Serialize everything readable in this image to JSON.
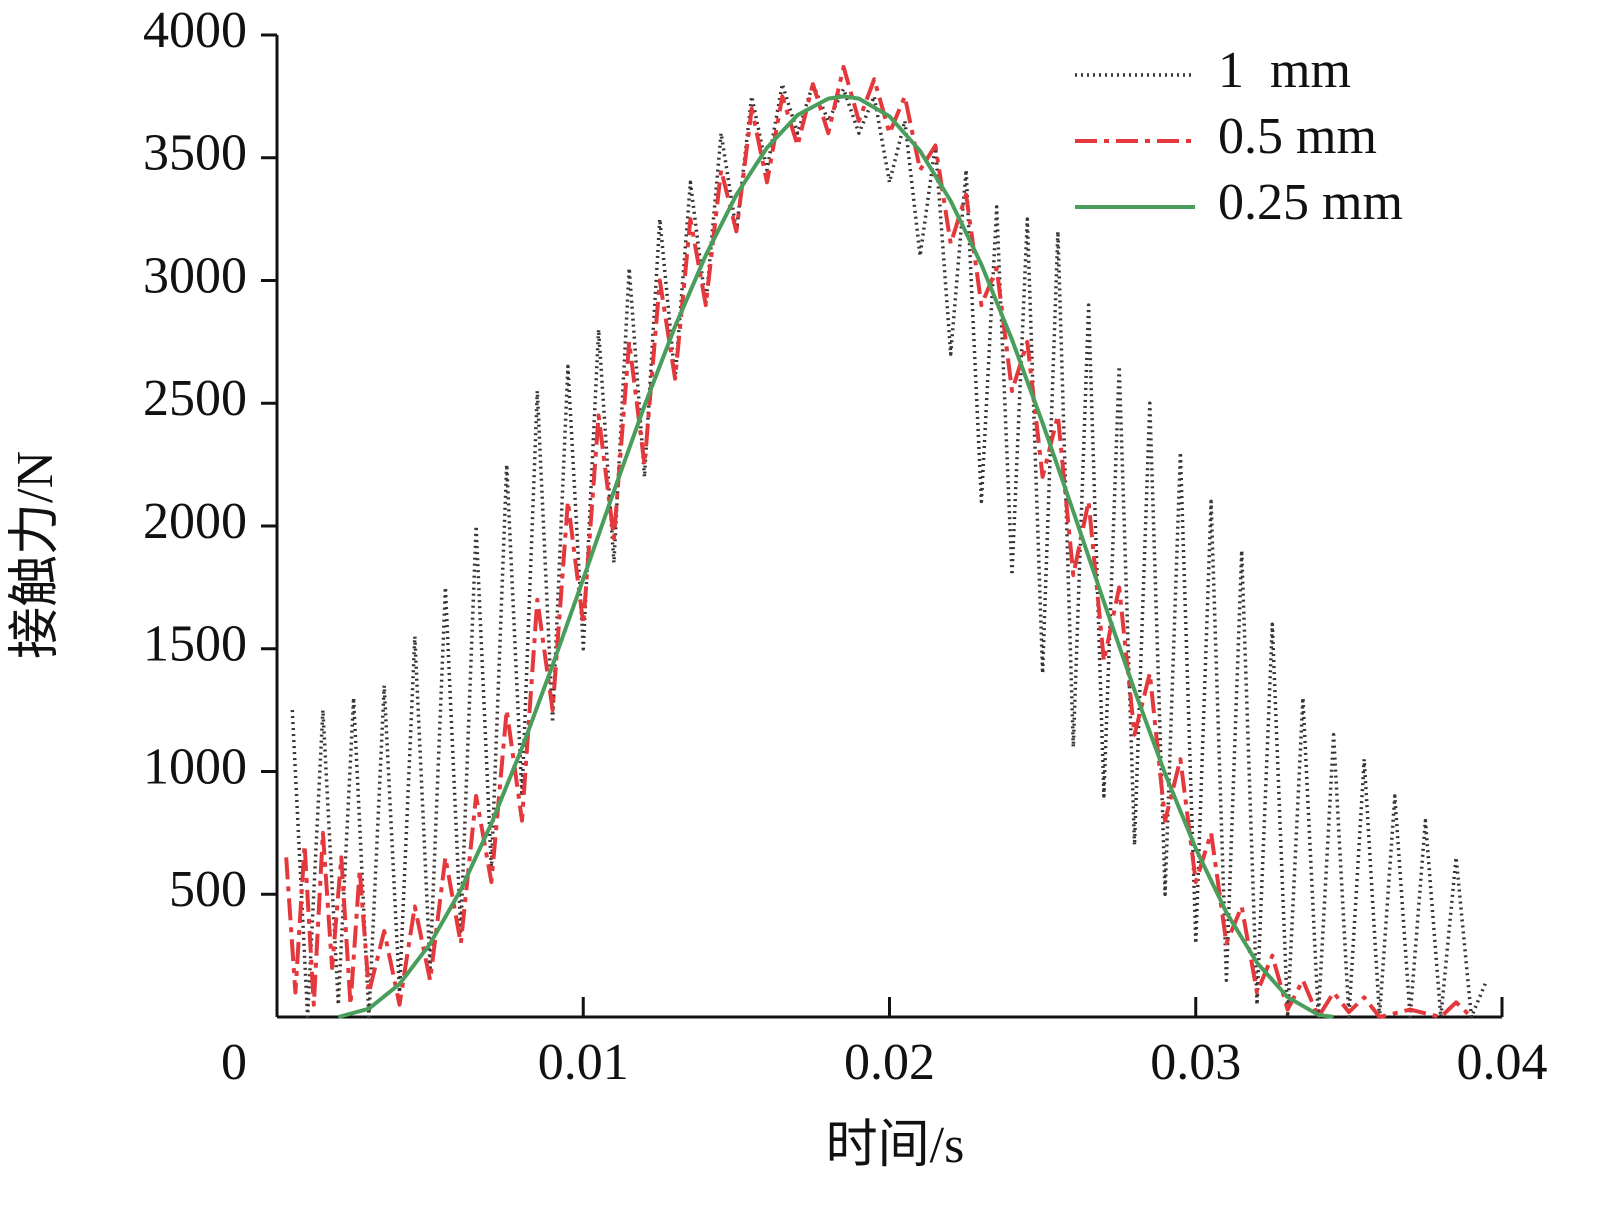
{
  "chart_data": {
    "type": "line",
    "xlabel": "时间/s",
    "ylabel": "接触力/N",
    "xlim": [
      0,
      0.04
    ],
    "ylim": [
      0,
      4000
    ],
    "xticks": [
      0,
      0.01,
      0.02,
      0.03,
      0.04
    ],
    "yticks": [
      500,
      1000,
      1500,
      2000,
      2500,
      3000,
      3500,
      4000
    ],
    "legend": "upper right",
    "series": [
      {
        "name": "1  mm",
        "color": "#3b3232",
        "style": "dotted",
        "x": [
          0.0005,
          0.001,
          0.0015,
          0.002,
          0.0025,
          0.003,
          0.0035,
          0.004,
          0.0045,
          0.005,
          0.0055,
          0.006,
          0.0065,
          0.007,
          0.0075,
          0.008,
          0.0085,
          0.009,
          0.0095,
          0.01,
          0.0105,
          0.011,
          0.0115,
          0.012,
          0.0125,
          0.013,
          0.0135,
          0.014,
          0.0145,
          0.015,
          0.0155,
          0.016,
          0.0165,
          0.017,
          0.0175,
          0.018,
          0.0185,
          0.019,
          0.0195,
          0.02,
          0.0205,
          0.021,
          0.0215,
          0.022,
          0.0225,
          0.023,
          0.0235,
          0.024,
          0.0245,
          0.025,
          0.0255,
          0.026,
          0.0265,
          0.027,
          0.0275,
          0.028,
          0.0285,
          0.029,
          0.0295,
          0.03,
          0.0305,
          0.031,
          0.0315,
          0.032,
          0.0325,
          0.033,
          0.0335,
          0.034,
          0.0345,
          0.035,
          0.0355,
          0.036,
          0.0365,
          0.037,
          0.0375,
          0.038,
          0.0385,
          0.039,
          0.0395
        ],
        "values": [
          1250,
          0,
          1250,
          50,
          1300,
          0,
          1350,
          100,
          1550,
          200,
          1750,
          350,
          2000,
          600,
          2250,
          900,
          2550,
          1200,
          2650,
          1500,
          2800,
          1850,
          3050,
          2200,
          3250,
          2600,
          3400,
          2900,
          3600,
          3200,
          3750,
          3450,
          3800,
          3600,
          3800,
          3650,
          3780,
          3600,
          3750,
          3400,
          3650,
          3100,
          3550,
          2700,
          3450,
          2100,
          3300,
          1800,
          3250,
          1400,
          3200,
          1100,
          2900,
          900,
          2650,
          700,
          2500,
          500,
          2300,
          300,
          2100,
          150,
          1900,
          50,
          1600,
          0,
          1300,
          0,
          1150,
          0,
          1050,
          0,
          900,
          0,
          800,
          0,
          650,
          0,
          150
        ]
      },
      {
        "name": "0.5 mm",
        "color": "#e5383c",
        "style": "dashdot",
        "x": [
          0.0003,
          0.0006,
          0.0009,
          0.0012,
          0.0015,
          0.0018,
          0.0021,
          0.0024,
          0.0027,
          0.003,
          0.0035,
          0.004,
          0.0045,
          0.005,
          0.0055,
          0.006,
          0.0065,
          0.007,
          0.0075,
          0.008,
          0.0085,
          0.009,
          0.0095,
          0.01,
          0.0105,
          0.011,
          0.0115,
          0.012,
          0.0125,
          0.013,
          0.0135,
          0.014,
          0.0145,
          0.015,
          0.0155,
          0.016,
          0.0165,
          0.017,
          0.0175,
          0.018,
          0.0185,
          0.019,
          0.0195,
          0.02,
          0.0205,
          0.021,
          0.0215,
          0.022,
          0.0225,
          0.023,
          0.0235,
          0.024,
          0.0245,
          0.025,
          0.0255,
          0.026,
          0.0265,
          0.027,
          0.0275,
          0.028,
          0.0285,
          0.029,
          0.0295,
          0.03,
          0.0305,
          0.031,
          0.0315,
          0.032,
          0.0325,
          0.033,
          0.0335,
          0.034,
          0.0345,
          0.035,
          0.0355,
          0.036,
          0.037,
          0.038,
          0.0385,
          0.039
        ],
        "values": [
          650,
          100,
          700,
          50,
          750,
          200,
          650,
          50,
          600,
          100,
          350,
          50,
          450,
          150,
          650,
          300,
          900,
          550,
          1250,
          800,
          1700,
          1250,
          2100,
          1600,
          2450,
          1950,
          2750,
          2250,
          3000,
          2600,
          3250,
          2900,
          3450,
          3200,
          3700,
          3400,
          3750,
          3550,
          3800,
          3600,
          3870,
          3650,
          3820,
          3600,
          3750,
          3450,
          3550,
          3150,
          3350,
          2900,
          3050,
          2550,
          2750,
          2200,
          2450,
          1800,
          2100,
          1450,
          1750,
          1150,
          1400,
          800,
          1050,
          550,
          750,
          300,
          450,
          100,
          250,
          30,
          150,
          0,
          100,
          20,
          80,
          0,
          30,
          0,
          60,
          0
        ]
      },
      {
        "name": "0.25 mm",
        "color": "#4a9e5c",
        "style": "solid",
        "x": [
          0.002,
          0.003,
          0.004,
          0.005,
          0.006,
          0.007,
          0.008,
          0.009,
          0.01,
          0.011,
          0.012,
          0.013,
          0.014,
          0.015,
          0.016,
          0.017,
          0.018,
          0.0185,
          0.019,
          0.02,
          0.021,
          0.022,
          0.023,
          0.024,
          0.025,
          0.026,
          0.027,
          0.028,
          0.029,
          0.03,
          0.031,
          0.032,
          0.033,
          0.034,
          0.0345
        ],
        "values": [
          0,
          34,
          134,
          298,
          518,
          788,
          1096,
          1433,
          1785,
          2142,
          2490,
          2813,
          3103,
          3349,
          3541,
          3674,
          3741,
          3750,
          3741,
          3669,
          3528,
          3324,
          3065,
          2759,
          2419,
          2059,
          1691,
          1331,
          991,
          686,
          426,
          221,
          81,
          9,
          0
        ]
      }
    ]
  }
}
